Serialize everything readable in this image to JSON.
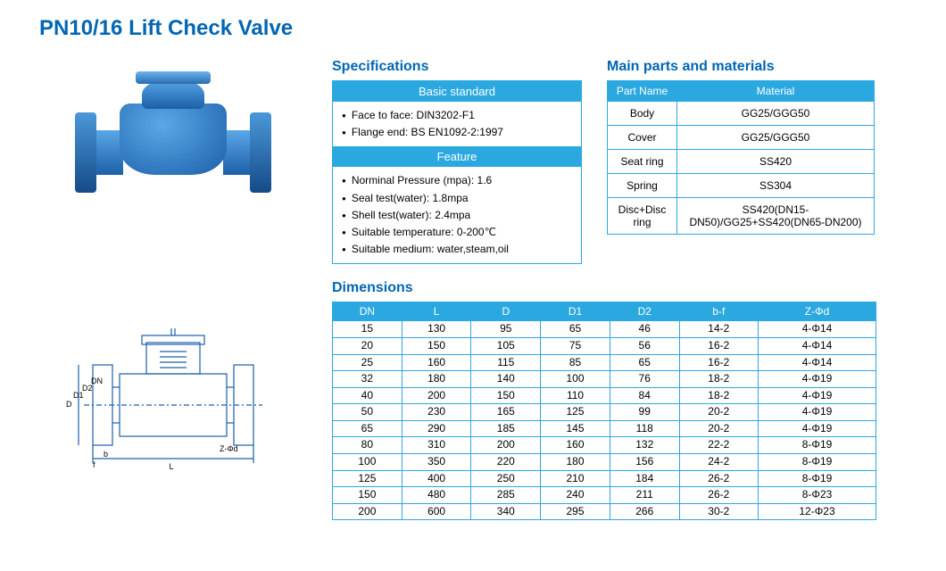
{
  "colors": {
    "brand": "#0066b3",
    "accent": "#2ca8e0",
    "valve_blue": "#1c5fa8"
  },
  "title": "PN10/16 Lift Check Valve",
  "specifications": {
    "heading": "Specifications",
    "basic_standard_label": "Basic standard",
    "basic_standard": [
      "Face to face: DIN3202-F1",
      "Flange end: BS EN1092-2:1997"
    ],
    "feature_label": "Feature",
    "features": [
      "Norminal Pressure (mpa): 1.6",
      "Seal test(water): 1.8mpa",
      "Shell test(water): 2.4mpa",
      "Suitable temperature: 0-200℃",
      "Suitable medium: water,steam,oil"
    ]
  },
  "parts": {
    "heading": "Main parts and materials",
    "columns": [
      "Part Name",
      "Material"
    ],
    "rows": [
      [
        "Body",
        "GG25/GGG50"
      ],
      [
        "Cover",
        "GG25/GGG50"
      ],
      [
        "Seat ring",
        "SS420"
      ],
      [
        "Spring",
        "SS304"
      ],
      [
        "Disc+Disc ring",
        "SS420(DN15-DN50)/GG25+SS420(DN65-DN200)"
      ]
    ]
  },
  "dimensions": {
    "heading": "Dimensions",
    "columns": [
      "DN",
      "L",
      "D",
      "D1",
      "D2",
      "b-f",
      "Z-Φd"
    ],
    "rows": [
      [
        "15",
        "130",
        "95",
        "65",
        "46",
        "14-2",
        "4-Φ14"
      ],
      [
        "20",
        "150",
        "105",
        "75",
        "56",
        "16-2",
        "4-Φ14"
      ],
      [
        "25",
        "160",
        "115",
        "85",
        "65",
        "16-2",
        "4-Φ14"
      ],
      [
        "32",
        "180",
        "140",
        "100",
        "76",
        "18-2",
        "4-Φ19"
      ],
      [
        "40",
        "200",
        "150",
        "110",
        "84",
        "18-2",
        "4-Φ19"
      ],
      [
        "50",
        "230",
        "165",
        "125",
        "99",
        "20-2",
        "4-Φ19"
      ],
      [
        "65",
        "290",
        "185",
        "145",
        "118",
        "20-2",
        "4-Φ19"
      ],
      [
        "80",
        "310",
        "200",
        "160",
        "132",
        "22-2",
        "8-Φ19"
      ],
      [
        "100",
        "350",
        "220",
        "180",
        "156",
        "24-2",
        "8-Φ19"
      ],
      [
        "125",
        "400",
        "250",
        "210",
        "184",
        "26-2",
        "8-Φ19"
      ],
      [
        "150",
        "480",
        "285",
        "240",
        "211",
        "26-2",
        "8-Φ23"
      ],
      [
        "200",
        "600",
        "340",
        "295",
        "266",
        "30-2",
        "12-Φ23"
      ]
    ],
    "schematic_labels": {
      "D": "D",
      "D1": "D1",
      "D2": "D2",
      "DN": "DN",
      "L": "L",
      "b": "b",
      "f": "f",
      "Zd": "Z-Φd"
    }
  }
}
